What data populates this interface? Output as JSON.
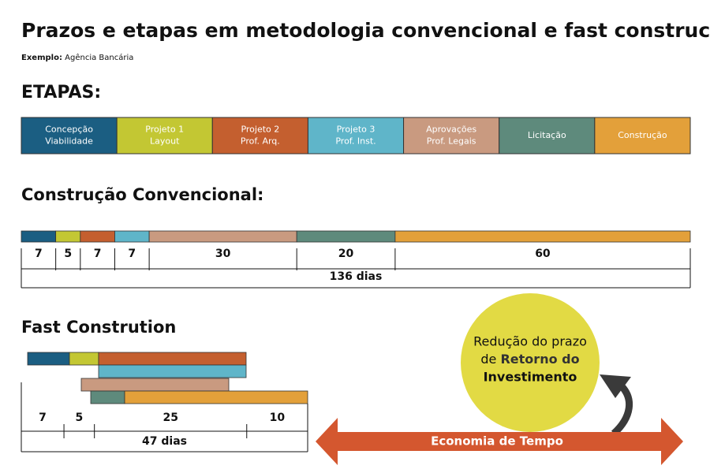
{
  "title": "Prazos e etapas em metodologia convencional e fast construction:",
  "subtitle": {
    "label": "Exemplo:",
    "text": "Agência Bancária"
  },
  "stages": {
    "heading": "ETAPAS:",
    "items": [
      {
        "lines": [
          "Concepção",
          "Viabilidade"
        ],
        "color": "#1b5e82"
      },
      {
        "lines": [
          "Projeto 1",
          "Layout"
        ],
        "color": "#c3c733"
      },
      {
        "lines": [
          "Projeto 2",
          "Prof. Arq."
        ],
        "color": "#c45f2f"
      },
      {
        "lines": [
          "Projeto 3",
          "Prof. Inst."
        ],
        "color": "#5fb5c9"
      },
      {
        "lines": [
          "Aprovações",
          "Prof. Legais"
        ],
        "color": "#c99a80"
      },
      {
        "lines": [
          "Licitação"
        ],
        "color": "#5e8a7c"
      },
      {
        "lines": [
          "Construção"
        ],
        "color": "#e3a03a"
      }
    ]
  },
  "conventional": {
    "heading": "Construção Convencional:",
    "days": [
      7,
      5,
      7,
      7,
      30,
      20,
      60
    ],
    "total": "136 dias"
  },
  "fast": {
    "heading": "Fast Constrution",
    "days": [
      7,
      5,
      25,
      10
    ],
    "total": "47 dias"
  },
  "callout": {
    "lines": [
      "Redução do prazo",
      "de",
      "Retorno do",
      "Investimento"
    ]
  },
  "arrow_label": "Economia de Tempo"
}
